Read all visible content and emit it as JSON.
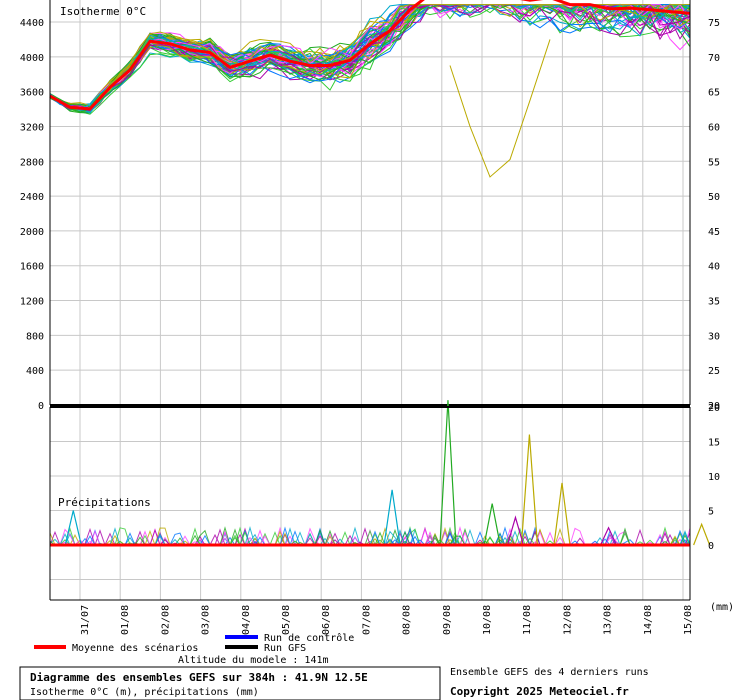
{
  "chart_data": {
    "type": "line",
    "upper_panel": {
      "label": "Isotherme 0°C",
      "y_left_ticks": [
        "4400",
        "4000",
        "3600",
        "3200",
        "2800",
        "2400",
        "2000",
        "1600",
        "1200",
        "800",
        "400",
        "0"
      ],
      "y_right_ticks": [
        "75",
        "70",
        "65",
        "60",
        "55",
        "50",
        "45",
        "40",
        "35",
        "30",
        "25",
        "20"
      ],
      "ylim": [
        0,
        4600
      ],
      "grid": true
    },
    "lower_panel": {
      "label": "Précipitations",
      "unit": "(mm)",
      "y_right_ticks": [
        "20",
        "15",
        "10",
        "5",
        "0"
      ],
      "ylim": [
        -8,
        20
      ],
      "grid": true
    },
    "x_tick_labels": [
      "31/07",
      "01/08",
      "02/08",
      "03/08",
      "04/08",
      "05/08",
      "06/08",
      "07/08",
      "08/08",
      "09/08",
      "10/08",
      "11/08",
      "12/08",
      "13/08",
      "14/08",
      "15/08"
    ],
    "series": [
      {
        "name": "Moyenne des scénarios",
        "x": [
          0,
          2,
          4,
          6,
          8,
          10,
          12,
          14,
          16,
          18,
          20,
          22,
          24,
          26,
          28,
          30,
          32,
          34,
          36,
          38,
          40,
          42,
          44,
          46,
          48,
          50,
          52,
          54,
          56,
          58,
          60,
          62,
          64
        ],
        "values": [
          3550,
          3420,
          3400,
          3650,
          3850,
          4180,
          4150,
          4080,
          4050,
          3880,
          3950,
          4020,
          3950,
          3900,
          3900,
          3960,
          4150,
          4300,
          4540,
          4720,
          4680,
          4700,
          4750,
          4690,
          4650,
          4680,
          4600,
          4600,
          4550,
          4560,
          4540,
          4520,
          4500
        ]
      }
    ],
    "precip_spikes": [
      {
        "x": 1,
        "value": 5,
        "color": "#00aacc"
      },
      {
        "x": 14.7,
        "value": 8,
        "color": "#00aacc"
      },
      {
        "x": 17.1,
        "value": 21,
        "color": "#22aa22"
      },
      {
        "x": 20.6,
        "value": 16,
        "color": "#bbaa00"
      },
      {
        "x": 22.0,
        "value": 9,
        "color": "#bbaa00"
      },
      {
        "x": 20.0,
        "value": 4,
        "color": "#aa00aa"
      },
      {
        "x": 19.0,
        "value": 6,
        "color": "#22aa22"
      },
      {
        "x": 40.0,
        "value": 7,
        "color": "#bbaa00"
      },
      {
        "x": 38.0,
        "value": 5,
        "color": "#00aacc"
      },
      {
        "x": 41.0,
        "value": 3,
        "color": "#00aacc"
      },
      {
        "x": 35.0,
        "value": 4,
        "color": "#22aa22"
      },
      {
        "x": 31.0,
        "value": 3,
        "color": "#00aacc"
      },
      {
        "x": 28.0,
        "value": 3,
        "color": "#bbaa00"
      },
      {
        "x": 24.0,
        "value": 2.5,
        "color": "#aa00aa"
      }
    ],
    "legend": [
      {
        "label": "Run de contrôle",
        "color": "#0000ff"
      },
      {
        "label": "Run GFS",
        "color": "#000000"
      },
      {
        "label": "Moyenne des scénarios",
        "color": "#ff0000"
      }
    ],
    "colors": {
      "ensemble_palette": [
        "#22aa22",
        "#00aacc",
        "#aa00aa",
        "#bbaa00",
        "#33cc33",
        "#0077ff",
        "#ff44ff"
      ],
      "mean": "#ff0000"
    }
  },
  "footer": {
    "altitude": "Altitude du modele : 141m",
    "title": "Diagramme des ensembles GEFS sur 384h : 41.9N 12.5E",
    "subtitle": "Isotherme 0°C (m), précipitations (mm)",
    "ensemble_info": "Ensemble GEFS des 4 derniers runs",
    "copyright": "Copyright 2025 Meteociel.fr"
  }
}
